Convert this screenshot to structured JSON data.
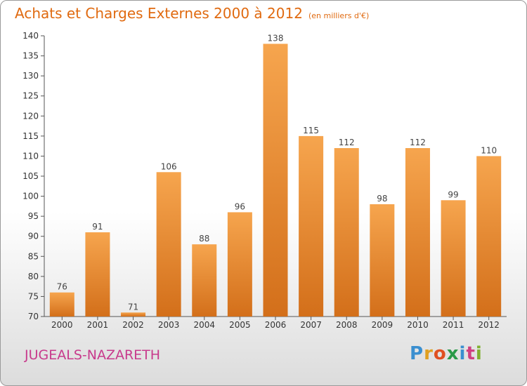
{
  "header": {
    "title": "Achats et Charges Externes 2000 à 2012",
    "subtitle": "(en milliers d'€)"
  },
  "footer": {
    "location": "JUGEALS-NAZARETH",
    "logo_text": "Proxiti"
  },
  "colors": {
    "bar_light": "#f6a54e",
    "bar_dark": "#d36f1a",
    "title": "#e06a10",
    "location": "#c83a8c"
  },
  "chart_data": {
    "type": "bar",
    "title": "Achats et Charges Externes 2000 à 2012",
    "subtitle": "(en milliers d'€)",
    "categories": [
      "2000",
      "2001",
      "2002",
      "2003",
      "2004",
      "2005",
      "2006",
      "2007",
      "2008",
      "2009",
      "2010",
      "2011",
      "2012"
    ],
    "values": [
      76,
      91,
      71,
      106,
      88,
      96,
      138,
      115,
      112,
      98,
      112,
      99,
      110
    ],
    "ylim": [
      70,
      140
    ],
    "yticks": [
      70,
      75,
      80,
      85,
      90,
      95,
      100,
      105,
      110,
      115,
      120,
      125,
      130,
      135,
      140
    ],
    "grid": false,
    "data_labels": true
  }
}
